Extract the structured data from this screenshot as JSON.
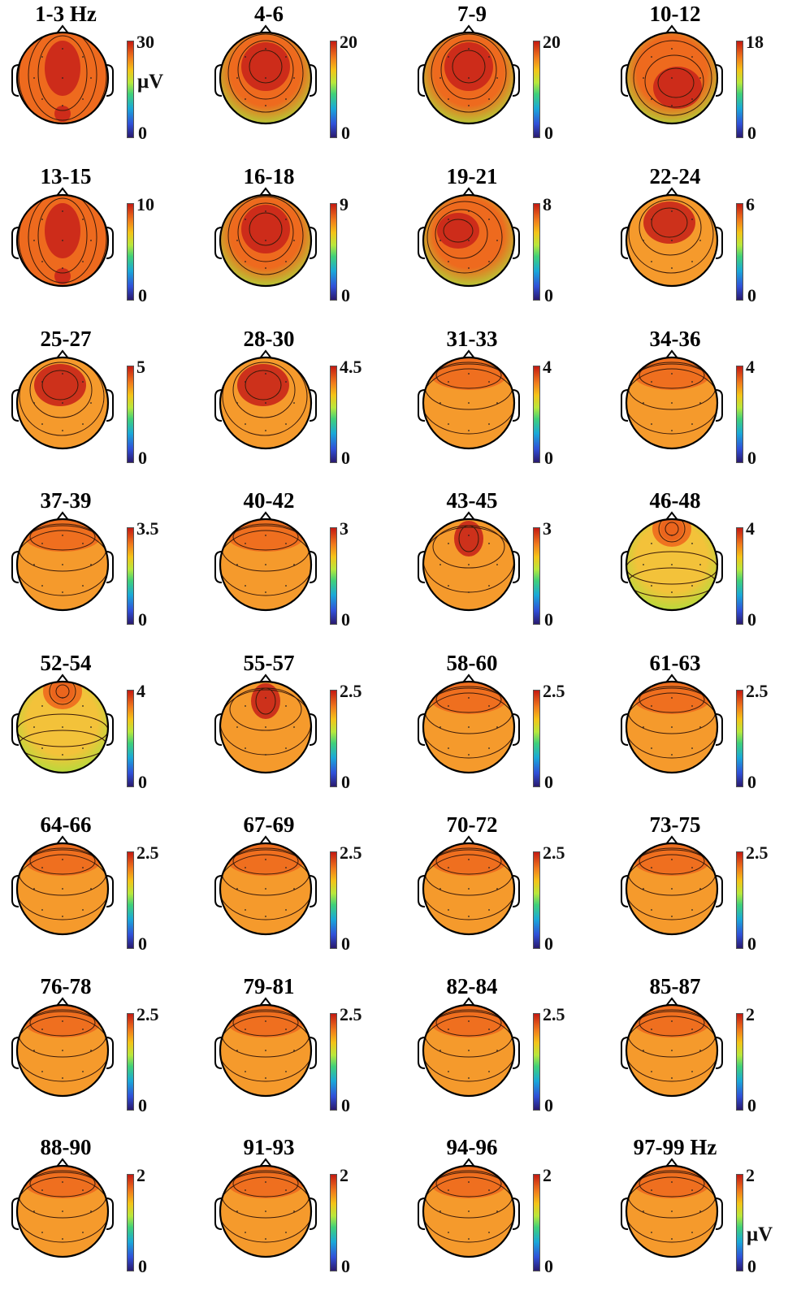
{
  "panels": [
    {
      "label": "1-3 Hz",
      "max": "30",
      "min": "0",
      "unit": "μV",
      "pattern": "frontal-occipital"
    },
    {
      "label": "4-6",
      "max": "20",
      "min": "0",
      "pattern": "central"
    },
    {
      "label": "7-9",
      "max": "20",
      "min": "0",
      "pattern": "central"
    },
    {
      "label": "10-12",
      "max": "18",
      "min": "0",
      "pattern": "parietal"
    },
    {
      "label": "13-15",
      "max": "10",
      "min": "0",
      "pattern": "frontal-occipital"
    },
    {
      "label": "16-18",
      "max": "9",
      "min": "0",
      "pattern": "central"
    },
    {
      "label": "19-21",
      "max": "8",
      "min": "0",
      "pattern": "left-central"
    },
    {
      "label": "22-24",
      "max": "6",
      "min": "0",
      "pattern": "frontal"
    },
    {
      "label": "25-27",
      "max": "5",
      "min": "0",
      "pattern": "frontal"
    },
    {
      "label": "28-30",
      "max": "4.5",
      "min": "0",
      "pattern": "frontal"
    },
    {
      "label": "31-33",
      "max": "4",
      "min": "0",
      "pattern": "frontal-band"
    },
    {
      "label": "34-36",
      "max": "4",
      "min": "0",
      "pattern": "frontal-band"
    },
    {
      "label": "37-39",
      "max": "3.5",
      "min": "0",
      "pattern": "frontal-band"
    },
    {
      "label": "40-42",
      "max": "3",
      "min": "0",
      "pattern": "frontal-band"
    },
    {
      "label": "43-45",
      "max": "3",
      "min": "0",
      "pattern": "frontal-peak"
    },
    {
      "label": "46-48",
      "max": "4",
      "min": "0",
      "pattern": "frontal-spot"
    },
    {
      "label": "52-54",
      "max": "4",
      "min": "0",
      "pattern": "frontal-spot"
    },
    {
      "label": "55-57",
      "max": "2.5",
      "min": "0",
      "pattern": "frontal-peak"
    },
    {
      "label": "58-60",
      "max": "2.5",
      "min": "0",
      "pattern": "frontal-band"
    },
    {
      "label": "61-63",
      "max": "2.5",
      "min": "0",
      "pattern": "frontal-band"
    },
    {
      "label": "64-66",
      "max": "2.5",
      "min": "0",
      "pattern": "frontal-band"
    },
    {
      "label": "67-69",
      "max": "2.5",
      "min": "0",
      "pattern": "frontal-band"
    },
    {
      "label": "70-72",
      "max": "2.5",
      "min": "0",
      "pattern": "frontal-band"
    },
    {
      "label": "73-75",
      "max": "2.5",
      "min": "0",
      "pattern": "frontal-band"
    },
    {
      "label": "76-78",
      "max": "2.5",
      "min": "0",
      "pattern": "frontal-band"
    },
    {
      "label": "79-81",
      "max": "2.5",
      "min": "0",
      "pattern": "frontal-band"
    },
    {
      "label": "82-84",
      "max": "2.5",
      "min": "0",
      "pattern": "frontal-band"
    },
    {
      "label": "85-87",
      "max": "2",
      "min": "0",
      "pattern": "frontal-band"
    },
    {
      "label": "88-90",
      "max": "2",
      "min": "0",
      "pattern": "frontal-band"
    },
    {
      "label": "91-93",
      "max": "2",
      "min": "0",
      "pattern": "frontal-band"
    },
    {
      "label": "94-96",
      "max": "2",
      "min": "0",
      "pattern": "frontal-band"
    },
    {
      "label": "97-99 Hz",
      "max": "2",
      "min": "0",
      "unit": "μV",
      "pattern": "frontal-band"
    }
  ],
  "colors": {
    "hot": "#c9261a",
    "warm": "#ee6a1e",
    "mid": "#f59a2c",
    "cool": "#f3c23a",
    "green": "#a8e03c",
    "outline": "#000000",
    "contour": "#3a1a0a"
  }
}
